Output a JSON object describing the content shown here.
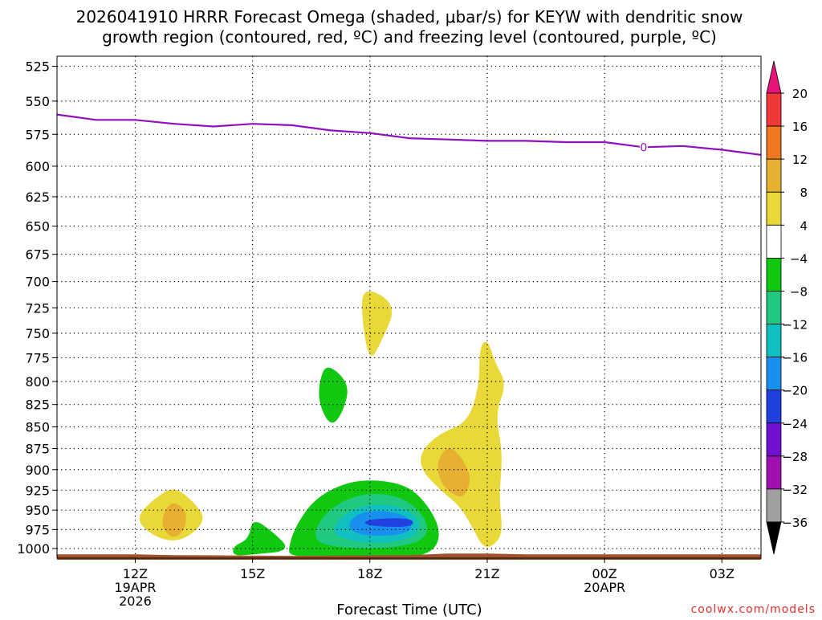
{
  "title_line1": "2026041910 HRRR Forecast Omega (shaded, μbar/s) for KEYW with dendritic snow",
  "title_line2": "growth region (contoured, red, ºC) and freezing level (contoured, purple, ºC)",
  "credit": "coolwx.com/models",
  "chart_data": {
    "type": "area",
    "title": "2026041910 HRRR Forecast Omega (shaded, μbar/s) for KEYW with dendritic snow growth region (contoured, red, ºC) and freezing level (contoured, purple, ºC)",
    "xlabel": "Forecast Time (UTC)",
    "ylabel": "",
    "x_ticks": [
      {
        "hour": 12,
        "label": "12Z",
        "sub1": "19APR",
        "sub2": "2026"
      },
      {
        "hour": 15,
        "label": "15Z",
        "sub1": "",
        "sub2": ""
      },
      {
        "hour": 18,
        "label": "18Z",
        "sub1": "",
        "sub2": ""
      },
      {
        "hour": 21,
        "label": "21Z",
        "sub1": "",
        "sub2": ""
      },
      {
        "hour": 24,
        "label": "00Z",
        "sub1": "20APR",
        "sub2": ""
      },
      {
        "hour": 27,
        "label": "03Z",
        "sub1": "",
        "sub2": ""
      }
    ],
    "x_range_hours_since_00Z_19APR": [
      10,
      28
    ],
    "y_ticks": [
      525,
      550,
      575,
      600,
      625,
      650,
      675,
      700,
      725,
      750,
      775,
      800,
      825,
      850,
      875,
      900,
      925,
      950,
      975,
      1000
    ],
    "y_range_mb": [
      1013,
      518
    ],
    "y_scale": "log",
    "grid": true,
    "colorbar": {
      "labels": [
        "20",
        "16",
        "12",
        "8",
        "4",
        "−4",
        "−8",
        "−12",
        "−16",
        "−20",
        "−24",
        "−28",
        "−32",
        "−36"
      ],
      "colors": [
        "#e8147a",
        "#f03838",
        "#f07820",
        "#e8b030",
        "#e8d838",
        "#ffffff",
        "#10c810",
        "#20c880",
        "#10c0c0",
        "#1890f0",
        "#2040e0",
        "#7010d0",
        "#a010b0",
        "#a0a0a0",
        "#000000"
      ]
    },
    "freezing_level": {
      "color": "#9010c0",
      "label": "0",
      "label_hour": 25,
      "points": [
        [
          10,
          560
        ],
        [
          11,
          564
        ],
        [
          12,
          564
        ],
        [
          13,
          567
        ],
        [
          14,
          569
        ],
        [
          15,
          567
        ],
        [
          16,
          568
        ],
        [
          17,
          572
        ],
        [
          18,
          574
        ],
        [
          19,
          578
        ],
        [
          20,
          579
        ],
        [
          21,
          580
        ],
        [
          22,
          580
        ],
        [
          23,
          581
        ],
        [
          24,
          581
        ],
        [
          25,
          585
        ],
        [
          26,
          584
        ],
        [
          27,
          587
        ],
        [
          28,
          591
        ]
      ]
    },
    "omega_regions": [
      {
        "level": "4",
        "color": "#e8d838",
        "points": [
          [
            12.0,
            960
          ],
          [
            12.5,
            935
          ],
          [
            13.0,
            920
          ],
          [
            13.5,
            940
          ],
          [
            13.8,
            960
          ],
          [
            13.5,
            980
          ],
          [
            13.0,
            992
          ],
          [
            12.4,
            982
          ]
        ]
      },
      {
        "level": "8",
        "color": "#e8b030",
        "points": [
          [
            12.7,
            955
          ],
          [
            12.95,
            938
          ],
          [
            13.3,
            950
          ],
          [
            13.3,
            972
          ],
          [
            13.0,
            988
          ],
          [
            12.7,
            975
          ]
        ]
      },
      {
        "level": "4",
        "color": "#e8d838",
        "points": [
          [
            17.8,
            703
          ],
          [
            18.7,
            722
          ],
          [
            18.3,
            758
          ],
          [
            18.0,
            780
          ],
          [
            17.8,
            740
          ]
        ]
      },
      {
        "level": "-4",
        "color": "#10c810",
        "points": [
          [
            16.9,
            780
          ],
          [
            17.5,
            803
          ],
          [
            17.3,
            835
          ],
          [
            17.0,
            850
          ],
          [
            16.7,
            825
          ],
          [
            16.7,
            800
          ]
        ]
      },
      {
        "level": "-4",
        "color": "#10c810",
        "points": [
          [
            14.5,
            997
          ],
          [
            14.9,
            988
          ],
          [
            15.0,
            960
          ],
          [
            15.5,
            977
          ],
          [
            16.0,
            1003
          ],
          [
            15.0,
            1008
          ],
          [
            14.5,
            1010
          ]
        ]
      },
      {
        "level": "4",
        "color": "#e8d838",
        "points": [
          [
            19.3,
            878
          ],
          [
            19.8,
            857
          ],
          [
            20.5,
            845
          ],
          [
            20.8,
            805
          ],
          [
            20.8,
            765
          ],
          [
            21.0,
            755
          ],
          [
            21.2,
            780
          ],
          [
            21.5,
            803
          ],
          [
            21.2,
            835
          ],
          [
            21.4,
            880
          ],
          [
            21.3,
            935
          ],
          [
            21.4,
            978
          ],
          [
            21.2,
            995
          ],
          [
            20.9,
            1000
          ],
          [
            20.6,
            970
          ],
          [
            20.3,
            945
          ],
          [
            19.8,
            925
          ],
          [
            19.3,
            900
          ]
        ]
      },
      {
        "level": "8",
        "color": "#e8b030",
        "points": [
          [
            19.7,
            892
          ],
          [
            20.0,
            870
          ],
          [
            20.4,
            888
          ],
          [
            20.6,
            912
          ],
          [
            20.4,
            935
          ],
          [
            20.1,
            930
          ],
          [
            19.8,
            915
          ]
        ]
      },
      {
        "level": "-4",
        "color": "#10c810",
        "points": [
          [
            15.9,
            1002
          ],
          [
            16.1,
            970
          ],
          [
            16.6,
            935
          ],
          [
            17.4,
            915
          ],
          [
            18.2,
            912
          ],
          [
            19.0,
            920
          ],
          [
            19.5,
            945
          ],
          [
            19.8,
            975
          ],
          [
            19.7,
            1000
          ],
          [
            19.2,
            1012
          ],
          [
            18.0,
            1012
          ],
          [
            16.8,
            1012
          ],
          [
            16.0,
            1010
          ]
        ]
      },
      {
        "level": "-8",
        "color": "#20c880",
        "points": [
          [
            16.5,
            990
          ],
          [
            16.8,
            955
          ],
          [
            17.5,
            933
          ],
          [
            18.3,
            928
          ],
          [
            19.0,
            938
          ],
          [
            19.5,
            965
          ],
          [
            19.4,
            990
          ],
          [
            18.5,
            1000
          ],
          [
            17.3,
            1000
          ]
        ]
      },
      {
        "level": "-12",
        "color": "#10c0c0",
        "points": [
          [
            17.0,
            980
          ],
          [
            17.3,
            955
          ],
          [
            18.0,
            942
          ],
          [
            18.8,
            945
          ],
          [
            19.3,
            962
          ],
          [
            19.2,
            985
          ],
          [
            18.4,
            993
          ],
          [
            17.5,
            990
          ]
        ]
      },
      {
        "level": "-16",
        "color": "#1890f0",
        "points": [
          [
            17.4,
            970
          ],
          [
            17.7,
            953
          ],
          [
            18.4,
            950
          ],
          [
            19.0,
            958
          ],
          [
            19.1,
            978
          ],
          [
            18.4,
            984
          ],
          [
            17.7,
            982
          ]
        ]
      },
      {
        "level": "-20",
        "color": "#2040e0",
        "points": [
          [
            17.8,
            966
          ],
          [
            18.1,
            961
          ],
          [
            19.1,
            960
          ],
          [
            19.1,
            972
          ],
          [
            18.1,
            971
          ]
        ]
      }
    ],
    "surface": {
      "color": "#a0522d",
      "points": [
        [
          10,
          1010
        ],
        [
          12,
          1010
        ],
        [
          13,
          1011
        ],
        [
          16,
          1012
        ],
        [
          19,
          1011
        ],
        [
          20,
          1009
        ],
        [
          21,
          1009
        ],
        [
          22,
          1010
        ],
        [
          28,
          1010
        ]
      ]
    }
  }
}
